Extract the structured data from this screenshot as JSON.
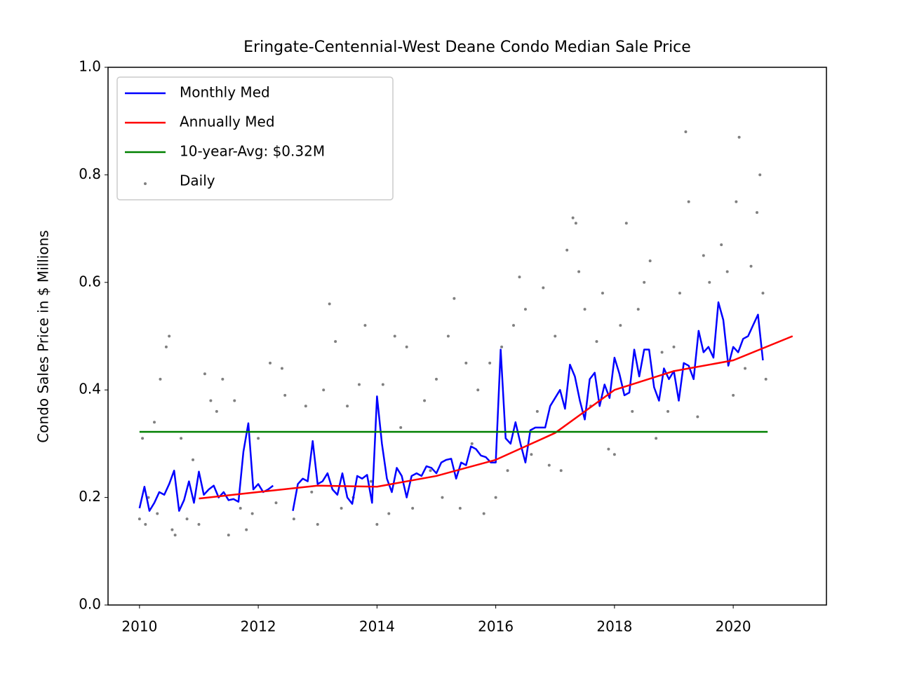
{
  "chart_data": {
    "type": "line",
    "title": "Eringate-Centennial-West Deane Condo Median Sale Price",
    "ylabel": "Condo Sales Price in $ Millions",
    "xlim": [
      2009.47,
      2021.57
    ],
    "ylim": [
      0,
      1
    ],
    "xticks": [
      2010,
      2012,
      2014,
      2016,
      2018,
      2020
    ],
    "yticks": [
      {
        "value": 0,
        "label": "0.0"
      },
      0.2,
      0.4,
      0.6,
      0.8,
      {
        "value": 1,
        "label": "1.0"
      }
    ],
    "grid": false,
    "legend": "upper left",
    "series": [
      {
        "name": "Monthly Med",
        "color": "#0000ff",
        "x": [
          2010,
          2010.083,
          2010.167,
          2010.25,
          2010.333,
          2010.417,
          2010.5,
          2010.583,
          2010.667,
          2010.75,
          2010.833,
          2010.917,
          2011,
          2011.083,
          2011.167,
          2011.25,
          2011.333,
          2011.417,
          2011.5,
          2011.583,
          2011.667,
          2011.75,
          2011.833,
          2011.917,
          2012,
          2012.083,
          2012.167,
          2012.25,
          2012.333,
          2012.417,
          2012.5,
          2012.583,
          2012.667,
          2012.75,
          2012.833,
          2012.917,
          2013,
          2013.083,
          2013.167,
          2013.25,
          2013.333,
          2013.417,
          2013.5,
          2013.583,
          2013.667,
          2013.75,
          2013.833,
          2013.917,
          2014,
          2014.083,
          2014.167,
          2014.25,
          2014.333,
          2014.417,
          2014.5,
          2014.583,
          2014.667,
          2014.75,
          2014.833,
          2014.917,
          2015,
          2015.083,
          2015.167,
          2015.25,
          2015.333,
          2015.417,
          2015.5,
          2015.583,
          2015.667,
          2015.75,
          2015.833,
          2015.917,
          2016,
          2016.083,
          2016.167,
          2016.25,
          2016.333,
          2016.417,
          2016.5,
          2016.583,
          2016.667,
          2016.75,
          2016.833,
          2016.917,
          2017,
          2017.083,
          2017.167,
          2017.25,
          2017.333,
          2017.417,
          2017.5,
          2017.583,
          2017.667,
          2017.75,
          2017.833,
          2017.917,
          2018,
          2018.083,
          2018.167,
          2018.25,
          2018.333,
          2018.417,
          2018.5,
          2018.583,
          2018.667,
          2018.75,
          2018.833,
          2018.917,
          2019,
          2019.083,
          2019.167,
          2019.25,
          2019.333,
          2019.417,
          2019.5,
          2019.583,
          2019.667,
          2019.75,
          2019.833,
          2019.917,
          2020,
          2020.083,
          2020.167,
          2020.25,
          2020.333,
          2020.417,
          2020.5
        ],
        "values": [
          0.18,
          0.22,
          0.175,
          0.19,
          0.21,
          0.205,
          0.225,
          0.25,
          0.175,
          0.195,
          0.23,
          0.19,
          0.248,
          0.205,
          0.215,
          0.222,
          0.2,
          0.21,
          0.195,
          0.197,
          0.192,
          0.285,
          0.338,
          0.215,
          0.225,
          0.21,
          0.215,
          0.222,
          null,
          null,
          null,
          0.175,
          0.225,
          0.235,
          0.23,
          0.305,
          0.225,
          0.23,
          0.245,
          0.215,
          0.205,
          0.245,
          0.2,
          0.188,
          0.24,
          0.235,
          0.242,
          0.19,
          0.388,
          0.3,
          0.235,
          0.21,
          0.255,
          0.24,
          0.2,
          0.24,
          0.245,
          0.24,
          0.258,
          0.255,
          0.245,
          0.265,
          0.27,
          0.272,
          0.235,
          0.265,
          0.26,
          0.295,
          0.29,
          0.278,
          0.275,
          0.265,
          0.265,
          0.475,
          0.31,
          0.3,
          0.34,
          0.3,
          0.265,
          0.325,
          0.33,
          0.33,
          0.33,
          0.37,
          0.385,
          0.4,
          0.365,
          0.447,
          0.425,
          0.38,
          0.345,
          0.42,
          0.432,
          0.37,
          0.41,
          0.385,
          0.46,
          0.43,
          0.39,
          0.395,
          0.475,
          0.425,
          0.475,
          0.475,
          0.405,
          0.38,
          0.44,
          0.42,
          0.435,
          0.38,
          0.45,
          0.445,
          0.42,
          0.51,
          0.47,
          0.48,
          0.46,
          0.563,
          0.53,
          0.445,
          0.48,
          0.47,
          0.495,
          0.5,
          0.52,
          0.54,
          0.455
        ]
      },
      {
        "name": "Annually Med",
        "color": "#ff0000",
        "x": [
          2011,
          2012,
          2013,
          2014,
          2015,
          2016,
          2016.5,
          2017,
          2017.5,
          2018,
          2019,
          2020,
          2021
        ],
        "values": [
          0.198,
          0.21,
          0.222,
          0.22,
          0.24,
          0.27,
          0.295,
          0.32,
          0.36,
          0.4,
          0.435,
          0.455,
          0.5
        ]
      },
      {
        "name": "10-year-Avg: $0.32M",
        "color": "#008000",
        "x": [
          2010,
          2020.58
        ],
        "values": [
          0.322,
          0.322
        ]
      },
      {
        "name": "Daily",
        "color": "#808080",
        "type": "scatter",
        "x": [
          2010.0,
          2010.05,
          2010.1,
          2010.15,
          2010.25,
          2010.3,
          2010.35,
          2010.45,
          2010.5,
          2010.55,
          2010.6,
          2010.7,
          2010.8,
          2010.9,
          2011.0,
          2011.1,
          2011.2,
          2011.3,
          2011.4,
          2011.5,
          2011.6,
          2011.7,
          2011.8,
          2011.9,
          2012.0,
          2012.2,
          2012.3,
          2012.4,
          2012.45,
          2012.6,
          2012.8,
          2012.9,
          2013.0,
          2013.1,
          2013.2,
          2013.3,
          2013.4,
          2013.5,
          2013.6,
          2013.7,
          2013.8,
          2013.9,
          2014.0,
          2014.1,
          2014.2,
          2014.3,
          2014.4,
          2014.5,
          2014.6,
          2014.8,
          2014.9,
          2015.0,
          2015.1,
          2015.2,
          2015.3,
          2015.4,
          2015.5,
          2015.6,
          2015.7,
          2015.8,
          2015.9,
          2016.0,
          2016.1,
          2016.2,
          2016.3,
          2016.4,
          2016.5,
          2016.6,
          2016.7,
          2016.8,
          2016.9,
          2017.0,
          2017.1,
          2017.2,
          2017.3,
          2017.35,
          2017.4,
          2017.5,
          2017.6,
          2017.7,
          2017.8,
          2017.9,
          2018.0,
          2018.1,
          2018.2,
          2018.3,
          2018.4,
          2018.5,
          2018.6,
          2018.7,
          2018.8,
          2018.9,
          2019.0,
          2019.1,
          2019.2,
          2019.25,
          2019.4,
          2019.5,
          2019.6,
          2019.8,
          2019.9,
          2020.0,
          2020.05,
          2020.1,
          2020.2,
          2020.3,
          2020.4,
          2020.45,
          2020.5,
          2020.55
        ],
        "values": [
          0.16,
          0.31,
          0.15,
          0.2,
          0.34,
          0.17,
          0.42,
          0.48,
          0.5,
          0.14,
          0.13,
          0.31,
          0.16,
          0.27,
          0.15,
          0.43,
          0.38,
          0.36,
          0.42,
          0.13,
          0.38,
          0.18,
          0.14,
          0.17,
          0.31,
          0.45,
          0.19,
          0.44,
          0.39,
          0.16,
          0.37,
          0.21,
          0.15,
          0.4,
          0.56,
          0.49,
          0.18,
          0.37,
          0.2,
          0.41,
          0.52,
          0.23,
          0.15,
          0.41,
          0.17,
          0.5,
          0.33,
          0.48,
          0.18,
          0.38,
          0.25,
          0.42,
          0.2,
          0.5,
          0.57,
          0.18,
          0.45,
          0.3,
          0.4,
          0.17,
          0.45,
          0.2,
          0.48,
          0.25,
          0.52,
          0.61,
          0.55,
          0.28,
          0.36,
          0.59,
          0.26,
          0.5,
          0.25,
          0.66,
          0.72,
          0.71,
          0.62,
          0.55,
          0.37,
          0.49,
          0.58,
          0.29,
          0.28,
          0.52,
          0.71,
          0.36,
          0.55,
          0.6,
          0.64,
          0.31,
          0.47,
          0.36,
          0.48,
          0.58,
          0.88,
          0.75,
          0.35,
          0.65,
          0.6,
          0.67,
          0.62,
          0.39,
          0.75,
          0.87,
          0.44,
          0.63,
          0.73,
          0.8,
          0.58,
          0.42
        ]
      }
    ]
  }
}
